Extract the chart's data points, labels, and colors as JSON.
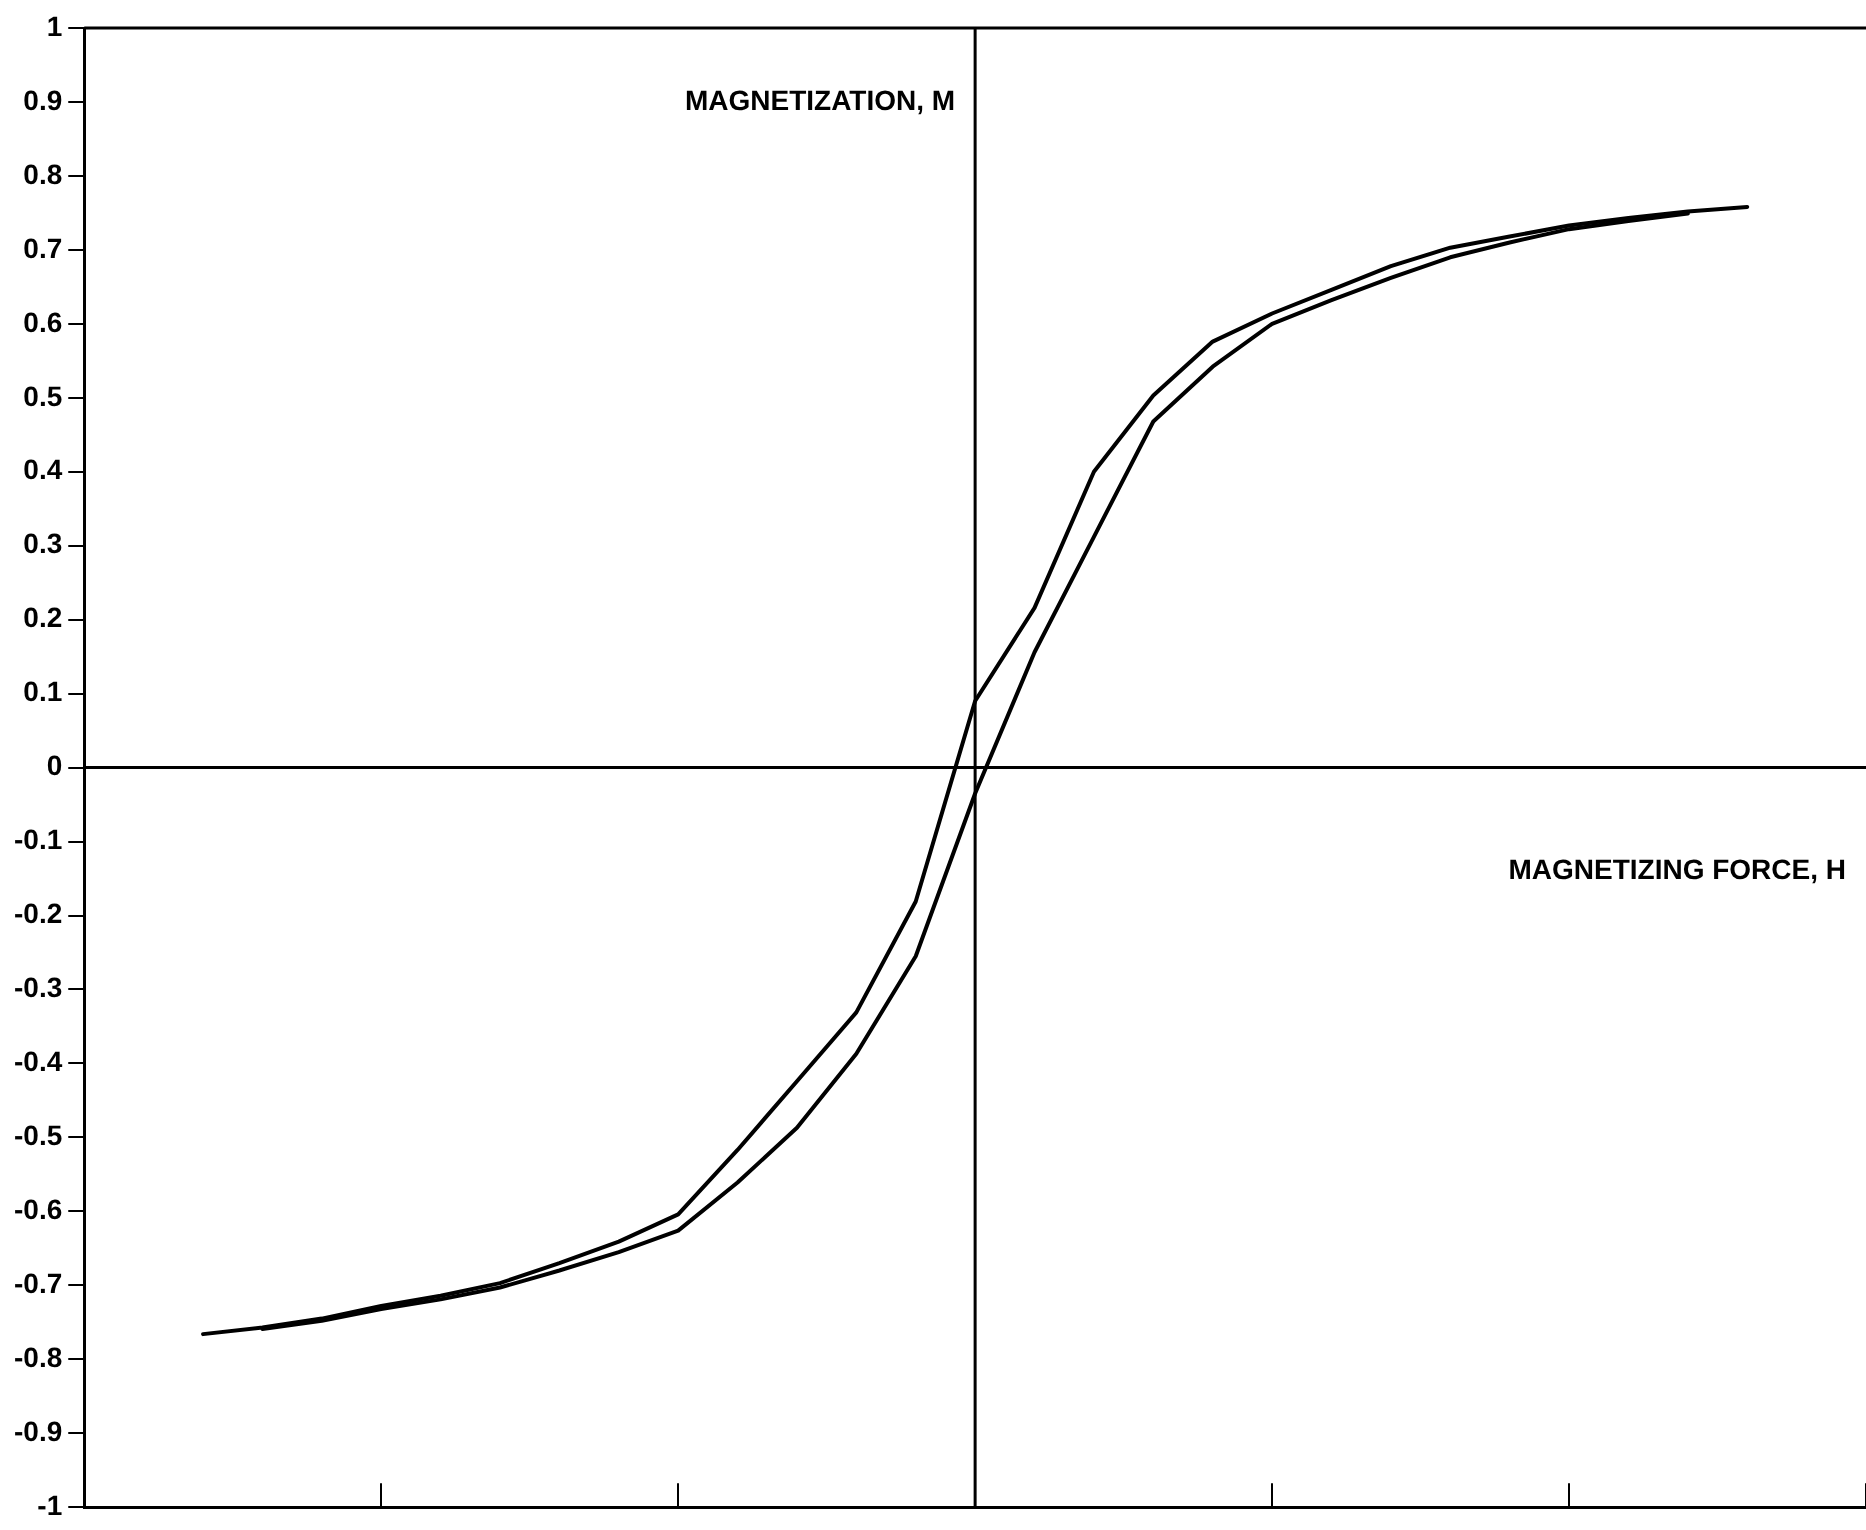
{
  "chart_data": {
    "type": "line",
    "xlabel": "MAGNETIZING FORCE, H",
    "ylabel": "MAGNETIZATION, M",
    "categories": [
      null,
      null,
      null,
      null,
      null,
      null,
      null,
      null,
      null,
      null,
      null,
      null,
      null,
      null,
      null,
      null,
      null,
      null,
      null,
      null,
      null,
      null,
      null,
      null,
      null,
      null,
      null,
      null,
      null,
      null,
      null
    ],
    "series": [
      {
        "color": "#000000",
        "values": [
          null,
          null,
          -0.766,
          -0.757,
          -0.745,
          -0.728,
          -0.714,
          -0.697,
          -0.67,
          -0.641,
          -0.604,
          -0.517,
          -0.424,
          -0.331,
          -0.181,
          0.09,
          0.216,
          0.4,
          0.503,
          0.576,
          0.614,
          0.646,
          0.678,
          0.703,
          0.718,
          0.733,
          0.743,
          0.752,
          0.758,
          null,
          null
        ]
      },
      {
        "color": "#000000",
        "values": [
          null,
          null,
          null,
          -0.759,
          -0.748,
          -0.732,
          -0.719,
          -0.703,
          -0.68,
          -0.655,
          -0.626,
          -0.561,
          -0.487,
          -0.387,
          -0.255,
          -0.035,
          0.156,
          0.312,
          0.468,
          0.542,
          0.6,
          0.632,
          0.662,
          0.69,
          0.71,
          0.728,
          0.739,
          0.749,
          null,
          null,
          null
        ]
      }
    ],
    "ylim": [
      -1,
      1
    ],
    "yticks": [
      -1,
      -0.9,
      -0.8,
      -0.7,
      -0.6,
      -0.5,
      -0.4,
      -0.3,
      -0.2,
      -0.1,
      0,
      0.1,
      0.2,
      0.3,
      0.4,
      0.5,
      0.6,
      0.7,
      0.8,
      0.9,
      1
    ],
    "ref_lines": [
      {
        "axis": "y",
        "value": 0,
        "color": "#000000"
      }
    ],
    "legend": false,
    "marker": "none",
    "line_style": "solid"
  }
}
